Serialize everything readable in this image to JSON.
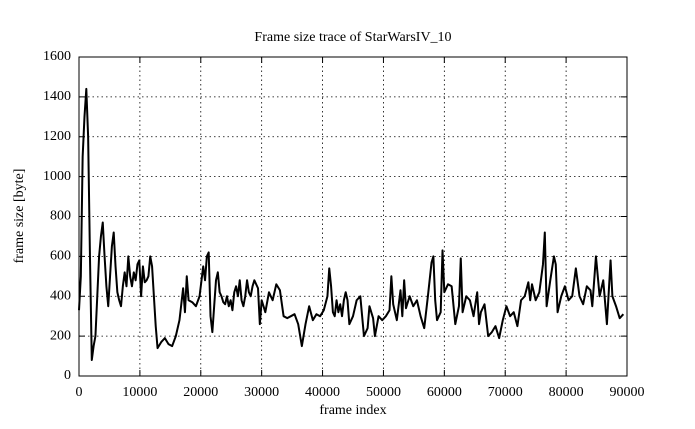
{
  "chart_data": {
    "type": "line",
    "title": "Frame size trace of StarWarsIV_10",
    "xlabel": "frame index",
    "ylabel": "frame size [byte]",
    "xlim": [
      0,
      90000
    ],
    "xticks": [
      0,
      10000,
      20000,
      30000,
      40000,
      50000,
      60000,
      70000,
      80000,
      90000
    ],
    "ylim": [
      0,
      1600
    ],
    "yticks": [
      0,
      200,
      400,
      600,
      800,
      1000,
      1200,
      1400,
      1600
    ],
    "grid": true,
    "series": [
      {
        "color": "#000000",
        "x": [
          0,
          300,
          600,
          900,
          1200,
          1500,
          1800,
          2100,
          2400,
          2700,
          3000,
          3300,
          3600,
          3900,
          4200,
          4500,
          4800,
          5100,
          5400,
          5700,
          6000,
          6300,
          6600,
          6900,
          7200,
          7500,
          7800,
          8100,
          8400,
          8700,
          9000,
          9300,
          9600,
          9900,
          10200,
          10500,
          10800,
          11100,
          11400,
          11700,
          12000,
          12300,
          12600,
          12900,
          13500,
          14100,
          14700,
          15300,
          15900,
          16500,
          17100,
          17400,
          17700,
          18000,
          18600,
          19200,
          19800,
          20400,
          20700,
          21000,
          21300,
          21600,
          21900,
          22200,
          22500,
          22800,
          23100,
          23400,
          23700,
          24000,
          24300,
          24600,
          24900,
          25200,
          25500,
          25800,
          26100,
          26400,
          26700,
          27000,
          27300,
          27600,
          27900,
          28200,
          28500,
          28800,
          29400,
          29700,
          30000,
          30600,
          31200,
          31800,
          32400,
          33000,
          33600,
          34200,
          34800,
          35400,
          36000,
          36600,
          37200,
          37800,
          38400,
          39000,
          39600,
          40200,
          40800,
          41100,
          41400,
          41700,
          42000,
          42300,
          42600,
          42900,
          43200,
          43500,
          43800,
          44100,
          44400,
          45000,
          45600,
          46200,
          46800,
          47400,
          47700,
          48300,
          48600,
          49200,
          49800,
          50400,
          51000,
          51300,
          51600,
          52200,
          52800,
          53100,
          53400,
          53700,
          54300,
          54900,
          55500,
          56100,
          56700,
          57300,
          57900,
          58200,
          58500,
          58800,
          59400,
          59700,
          60000,
          60600,
          61200,
          61800,
          62400,
          62700,
          63000,
          63600,
          64200,
          64800,
          65400,
          65700,
          66000,
          66600,
          67200,
          67800,
          68400,
          69000,
          69600,
          70200,
          70800,
          71400,
          72000,
          72600,
          73200,
          73800,
          74100,
          74400,
          75000,
          75600,
          76200,
          76500,
          76800,
          77400,
          78000,
          78300,
          78600,
          79200,
          79800,
          80400,
          81000,
          81600,
          82200,
          82800,
          83400,
          84000,
          84300,
          84900,
          85500,
          86100,
          86700,
          87300,
          87600,
          88200,
          88800,
          89400
        ],
        "values": [
          330,
          500,
          1100,
          1300,
          1440,
          1200,
          600,
          80,
          150,
          200,
          400,
          600,
          700,
          770,
          600,
          450,
          350,
          500,
          650,
          720,
          550,
          420,
          380,
          350,
          450,
          520,
          450,
          600,
          500,
          450,
          520,
          480,
          560,
          580,
          400,
          550,
          470,
          480,
          500,
          600,
          550,
          400,
          250,
          140,
          170,
          190,
          160,
          150,
          200,
          280,
          440,
          320,
          500,
          380,
          370,
          350,
          400,
          550,
          480,
          600,
          620,
          300,
          220,
          350,
          480,
          520,
          420,
          400,
          370,
          360,
          400,
          350,
          380,
          330,
          420,
          450,
          400,
          480,
          380,
          350,
          400,
          480,
          420,
          400,
          450,
          480,
          440,
          260,
          380,
          320,
          420,
          380,
          460,
          430,
          300,
          290,
          300,
          310,
          260,
          150,
          260,
          350,
          280,
          310,
          300,
          330,
          400,
          540,
          450,
          320,
          300,
          380,
          320,
          360,
          300,
          380,
          420,
          380,
          260,
          300,
          380,
          400,
          200,
          240,
          350,
          290,
          200,
          300,
          280,
          300,
          330,
          500,
          360,
          280,
          430,
          300,
          480,
          340,
          400,
          350,
          380,
          300,
          240,
          400,
          570,
          600,
          380,
          280,
          320,
          630,
          420,
          460,
          450,
          260,
          350,
          590,
          320,
          400,
          380,
          300,
          420,
          260,
          320,
          360,
          200,
          220,
          250,
          190,
          280,
          350,
          300,
          320,
          250,
          380,
          400,
          470,
          380,
          460,
          380,
          420,
          560,
          720,
          350,
          480,
          600,
          560,
          320,
          400,
          450,
          380,
          400,
          540,
          400,
          360,
          450,
          430,
          350,
          600,
          400,
          480,
          260,
          580,
          400,
          350,
          290,
          310
        ]
      }
    ]
  }
}
